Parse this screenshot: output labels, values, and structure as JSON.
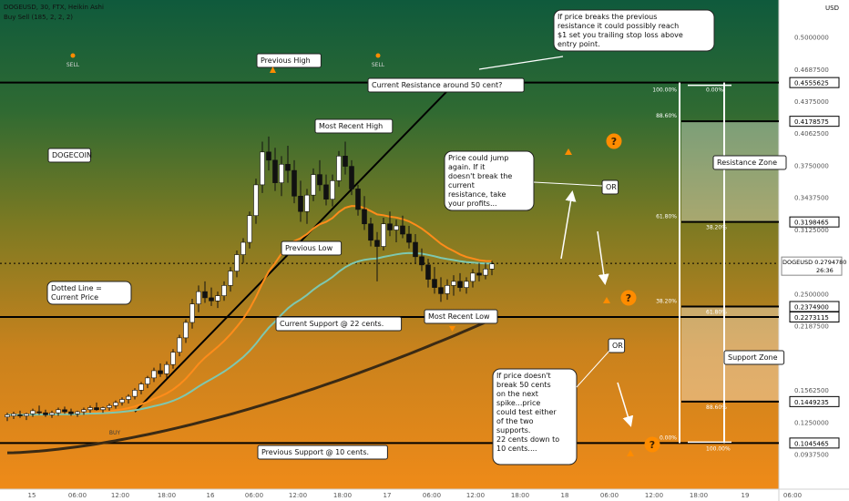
{
  "header": {
    "title": "DOGEUSD, 30, FTX, Heikin Ashi",
    "indicator": "Buy Sell",
    "indicator_params": "(185, 2, 2, 2)"
  },
  "price_axis": {
    "currency": "USD",
    "ticks": [
      "0.5000000",
      "0.4687500",
      "0.4375000",
      "0.4062500",
      "0.3750000",
      "0.3437500",
      "0.3125000",
      "0.2500000",
      "0.2187500",
      "0.1562500",
      "0.1250000",
      "0.0937500"
    ]
  },
  "price_tags": [
    {
      "value": "0.4555625",
      "color": "#ffffff"
    },
    {
      "value": "0.4178575",
      "color": "#ffffff"
    },
    {
      "value": "0.3198465",
      "color": "#ffffff"
    },
    {
      "value": "0.2374900",
      "color": "#ffffff"
    },
    {
      "value": "0.2273115",
      "color": "#ffffff"
    },
    {
      "value": "0.1449235",
      "color": "#ffffff"
    },
    {
      "value": "0.1045465",
      "color": "#ffffff"
    }
  ],
  "current_price": {
    "symbol": "DOGEUSD",
    "value": "0.2794780",
    "countdown": "26:36"
  },
  "time_axis": [
    "15",
    "06:00",
    "12:00",
    "18:00",
    "16",
    "06:00",
    "12:00",
    "18:00",
    "17",
    "06:00",
    "12:00",
    "18:00",
    "18",
    "06:00",
    "12:00",
    "18:00",
    "19",
    "06:00"
  ],
  "signals": {
    "sell1": "SELL",
    "sell2": "SELL",
    "buy": "BUY"
  },
  "labels": {
    "previous_high": "Previous High",
    "current_resistance": "Current Resistance around 50 cent?",
    "most_recent_high": "Most Recent High",
    "dogecoin": "DOGECOIN",
    "previous_low": "Previous Low",
    "dotted_line": "Dotted Line =\nCurrent Price",
    "current_support": "Current Support @ 22 cents.",
    "most_recent_low": "Most Recent Low",
    "previous_support": "Previous Support @ 10 cents.",
    "or1": "OR",
    "or2": "OR"
  },
  "callouts": {
    "top": "If price breaks the previous\nresistance it could possibly reach\n$1 set you trailing stop loss above\nentry point.",
    "middle": "Price could jump\nagain. If it\ndoesn't break the\ncurrent\nresistance, take\nyour profits...",
    "bottom": "If price doesn't\nbreak 50 cents\non the next\nspike...price\ncould test either\nof the two\nsupports.\n\n22 cents down to\n10 cents...."
  },
  "fib_left": [
    {
      "label": "100.00%",
      "price": 0.4555625
    },
    {
      "label": "88.60%",
      "price": 0.4178575
    },
    {
      "label": "61.80%",
      "price": 0.3198465
    },
    {
      "label": "38.20%",
      "price": 0.23749
    },
    {
      "label": "0.00%",
      "price": 0.1045465
    }
  ],
  "fib_right": [
    {
      "label": "0.00%",
      "price": 0.4555625
    },
    {
      "label": "38.20%",
      "price": 0.3198465
    },
    {
      "label": "61.80%",
      "price": 0.23749
    },
    {
      "label": "88.60%",
      "price": 0.1449235
    },
    {
      "label": "100.00%",
      "price": 0.1045465
    }
  ],
  "zones": {
    "resistance": "Resistance Zone",
    "support": "Support Zone"
  },
  "colors": {
    "bg_top": "#0f5a3c",
    "bg_mid": "#8a7a1c",
    "bg_bottom": "#f08a1a",
    "ema_fast": "#ff8c1a",
    "ema_mid": "#7ec8b0",
    "ema_slow": "#3a2a14",
    "accent": "#ff8c00"
  },
  "chart_data": {
    "type": "candlestick",
    "timeframe": "30m",
    "ylim": [
      0.0765,
      0.52
    ],
    "horizontal_levels": [
      0.4555625,
      0.279478,
      0.2273115,
      0.1045465
    ],
    "ohlc": [
      {
        "t": 0,
        "o": 0.13,
        "h": 0.134,
        "l": 0.126,
        "c": 0.132
      },
      {
        "t": 1,
        "o": 0.131,
        "h": 0.135,
        "l": 0.128,
        "c": 0.133
      },
      {
        "t": 2,
        "o": 0.132,
        "h": 0.136,
        "l": 0.129,
        "c": 0.131
      },
      {
        "t": 3,
        "o": 0.131,
        "h": 0.134,
        "l": 0.127,
        "c": 0.133
      },
      {
        "t": 4,
        "o": 0.133,
        "h": 0.138,
        "l": 0.13,
        "c": 0.136
      },
      {
        "t": 5,
        "o": 0.135,
        "h": 0.141,
        "l": 0.132,
        "c": 0.134
      },
      {
        "t": 6,
        "o": 0.134,
        "h": 0.137,
        "l": 0.13,
        "c": 0.132
      },
      {
        "t": 7,
        "o": 0.132,
        "h": 0.136,
        "l": 0.129,
        "c": 0.134
      },
      {
        "t": 8,
        "o": 0.134,
        "h": 0.139,
        "l": 0.131,
        "c": 0.137
      },
      {
        "t": 9,
        "o": 0.137,
        "h": 0.14,
        "l": 0.133,
        "c": 0.135
      },
      {
        "t": 10,
        "o": 0.135,
        "h": 0.138,
        "l": 0.131,
        "c": 0.133
      },
      {
        "t": 11,
        "o": 0.133,
        "h": 0.136,
        "l": 0.13,
        "c": 0.135
      },
      {
        "t": 12,
        "o": 0.135,
        "h": 0.139,
        "l": 0.132,
        "c": 0.137
      },
      {
        "t": 13,
        "o": 0.137,
        "h": 0.141,
        "l": 0.134,
        "c": 0.139
      },
      {
        "t": 14,
        "o": 0.139,
        "h": 0.144,
        "l": 0.136,
        "c": 0.137
      },
      {
        "t": 15,
        "o": 0.137,
        "h": 0.14,
        "l": 0.134,
        "c": 0.139
      },
      {
        "t": 16,
        "o": 0.139,
        "h": 0.143,
        "l": 0.136,
        "c": 0.141
      },
      {
        "t": 17,
        "o": 0.141,
        "h": 0.146,
        "l": 0.138,
        "c": 0.144
      },
      {
        "t": 18,
        "o": 0.144,
        "h": 0.149,
        "l": 0.141,
        "c": 0.147
      },
      {
        "t": 19,
        "o": 0.147,
        "h": 0.152,
        "l": 0.143,
        "c": 0.15
      },
      {
        "t": 20,
        "o": 0.15,
        "h": 0.158,
        "l": 0.147,
        "c": 0.156
      },
      {
        "t": 21,
        "o": 0.156,
        "h": 0.164,
        "l": 0.152,
        "c": 0.162
      },
      {
        "t": 22,
        "o": 0.162,
        "h": 0.17,
        "l": 0.158,
        "c": 0.168
      },
      {
        "t": 23,
        "o": 0.168,
        "h": 0.178,
        "l": 0.164,
        "c": 0.175
      },
      {
        "t": 24,
        "o": 0.175,
        "h": 0.182,
        "l": 0.169,
        "c": 0.172
      },
      {
        "t": 25,
        "o": 0.172,
        "h": 0.184,
        "l": 0.168,
        "c": 0.181
      },
      {
        "t": 26,
        "o": 0.181,
        "h": 0.196,
        "l": 0.177,
        "c": 0.193
      },
      {
        "t": 27,
        "o": 0.193,
        "h": 0.21,
        "l": 0.189,
        "c": 0.207
      },
      {
        "t": 28,
        "o": 0.207,
        "h": 0.225,
        "l": 0.202,
        "c": 0.222
      },
      {
        "t": 29,
        "o": 0.222,
        "h": 0.245,
        "l": 0.216,
        "c": 0.24
      },
      {
        "t": 30,
        "o": 0.24,
        "h": 0.258,
        "l": 0.232,
        "c": 0.252
      },
      {
        "t": 31,
        "o": 0.252,
        "h": 0.262,
        "l": 0.241,
        "c": 0.246
      },
      {
        "t": 32,
        "o": 0.246,
        "h": 0.256,
        "l": 0.238,
        "c": 0.243
      },
      {
        "t": 33,
        "o": 0.243,
        "h": 0.252,
        "l": 0.236,
        "c": 0.248
      },
      {
        "t": 34,
        "o": 0.248,
        "h": 0.262,
        "l": 0.243,
        "c": 0.258
      },
      {
        "t": 35,
        "o": 0.258,
        "h": 0.276,
        "l": 0.252,
        "c": 0.272
      },
      {
        "t": 36,
        "o": 0.272,
        "h": 0.292,
        "l": 0.266,
        "c": 0.288
      },
      {
        "t": 37,
        "o": 0.288,
        "h": 0.304,
        "l": 0.28,
        "c": 0.3
      },
      {
        "t": 38,
        "o": 0.3,
        "h": 0.33,
        "l": 0.294,
        "c": 0.326
      },
      {
        "t": 39,
        "o": 0.326,
        "h": 0.362,
        "l": 0.318,
        "c": 0.356
      },
      {
        "t": 40,
        "o": 0.356,
        "h": 0.398,
        "l": 0.348,
        "c": 0.388
      },
      {
        "t": 41,
        "o": 0.388,
        "h": 0.403,
        "l": 0.37,
        "c": 0.38
      },
      {
        "t": 42,
        "o": 0.38,
        "h": 0.392,
        "l": 0.35,
        "c": 0.358
      },
      {
        "t": 43,
        "o": 0.358,
        "h": 0.384,
        "l": 0.345,
        "c": 0.376
      },
      {
        "t": 44,
        "o": 0.376,
        "h": 0.394,
        "l": 0.358,
        "c": 0.37
      },
      {
        "t": 45,
        "o": 0.37,
        "h": 0.38,
        "l": 0.338,
        "c": 0.345
      },
      {
        "t": 46,
        "o": 0.345,
        "h": 0.36,
        "l": 0.32,
        "c": 0.33
      },
      {
        "t": 47,
        "o": 0.33,
        "h": 0.352,
        "l": 0.318,
        "c": 0.346
      },
      {
        "t": 48,
        "o": 0.346,
        "h": 0.372,
        "l": 0.34,
        "c": 0.366
      },
      {
        "t": 49,
        "o": 0.366,
        "h": 0.38,
        "l": 0.35,
        "c": 0.356
      },
      {
        "t": 50,
        "o": 0.356,
        "h": 0.366,
        "l": 0.336,
        "c": 0.342
      },
      {
        "t": 51,
        "o": 0.342,
        "h": 0.366,
        "l": 0.335,
        "c": 0.36
      },
      {
        "t": 52,
        "o": 0.36,
        "h": 0.389,
        "l": 0.354,
        "c": 0.384
      },
      {
        "t": 53,
        "o": 0.384,
        "h": 0.398,
        "l": 0.366,
        "c": 0.374
      },
      {
        "t": 54,
        "o": 0.374,
        "h": 0.38,
        "l": 0.346,
        "c": 0.352
      },
      {
        "t": 55,
        "o": 0.352,
        "h": 0.356,
        "l": 0.326,
        "c": 0.332
      },
      {
        "t": 56,
        "o": 0.332,
        "h": 0.345,
        "l": 0.312,
        "c": 0.318
      },
      {
        "t": 57,
        "o": 0.318,
        "h": 0.324,
        "l": 0.296,
        "c": 0.302
      },
      {
        "t": 58,
        "o": 0.302,
        "h": 0.31,
        "l": 0.262,
        "c": 0.296
      },
      {
        "t": 59,
        "o": 0.296,
        "h": 0.324,
        "l": 0.292,
        "c": 0.318
      },
      {
        "t": 60,
        "o": 0.318,
        "h": 0.33,
        "l": 0.306,
        "c": 0.312
      },
      {
        "t": 61,
        "o": 0.312,
        "h": 0.322,
        "l": 0.3,
        "c": 0.316
      },
      {
        "t": 62,
        "o": 0.316,
        "h": 0.326,
        "l": 0.304,
        "c": 0.308
      },
      {
        "t": 63,
        "o": 0.308,
        "h": 0.316,
        "l": 0.294,
        "c": 0.3
      },
      {
        "t": 64,
        "o": 0.3,
        "h": 0.308,
        "l": 0.28,
        "c": 0.286
      },
      {
        "t": 65,
        "o": 0.286,
        "h": 0.294,
        "l": 0.272,
        "c": 0.278
      },
      {
        "t": 66,
        "o": 0.278,
        "h": 0.284,
        "l": 0.256,
        "c": 0.264
      },
      {
        "t": 67,
        "o": 0.264,
        "h": 0.276,
        "l": 0.25,
        "c": 0.256
      },
      {
        "t": 68,
        "o": 0.256,
        "h": 0.266,
        "l": 0.242,
        "c": 0.25
      },
      {
        "t": 69,
        "o": 0.25,
        "h": 0.264,
        "l": 0.244,
        "c": 0.258
      },
      {
        "t": 70,
        "o": 0.258,
        "h": 0.268,
        "l": 0.248,
        "c": 0.262
      },
      {
        "t": 71,
        "o": 0.262,
        "h": 0.27,
        "l": 0.252,
        "c": 0.256
      },
      {
        "t": 72,
        "o": 0.256,
        "h": 0.266,
        "l": 0.25,
        "c": 0.262
      },
      {
        "t": 73,
        "o": 0.262,
        "h": 0.274,
        "l": 0.256,
        "c": 0.27
      },
      {
        "t": 74,
        "o": 0.27,
        "h": 0.28,
        "l": 0.262,
        "c": 0.268
      },
      {
        "t": 75,
        "o": 0.268,
        "h": 0.28,
        "l": 0.264,
        "c": 0.274
      },
      {
        "t": 76,
        "o": 0.274,
        "h": 0.282,
        "l": 0.268,
        "c": 0.279
      }
    ]
  }
}
